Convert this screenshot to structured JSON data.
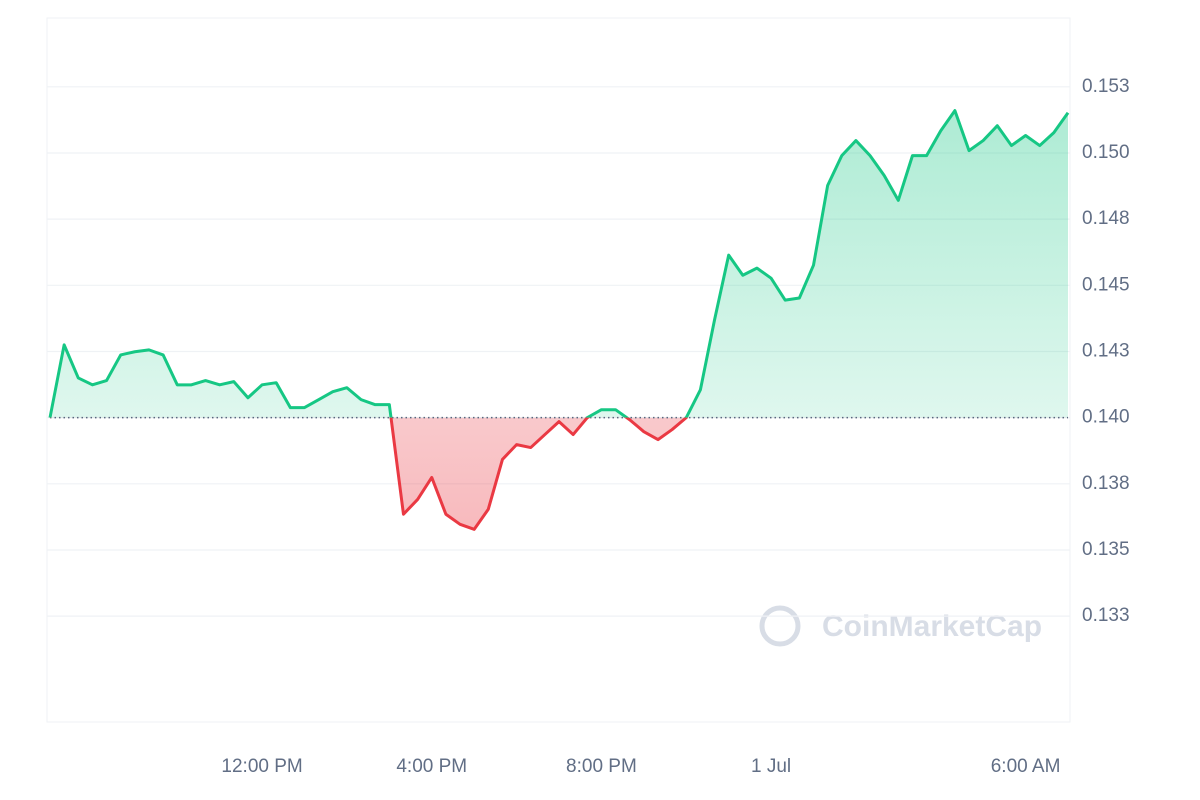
{
  "chart_data": {
    "type": "line",
    "watermark": "CoinMarketCap",
    "x": [
      "07:00",
      "07:20",
      "07:40",
      "08:00",
      "08:20",
      "08:40",
      "09:00",
      "09:20",
      "09:40",
      "10:00",
      "10:20",
      "10:40",
      "11:00",
      "11:20",
      "11:40",
      "12:00",
      "12:20",
      "12:40",
      "13:00",
      "13:20",
      "13:40",
      "14:00",
      "14:20",
      "14:40",
      "15:00",
      "15:20",
      "15:40",
      "16:00",
      "16:20",
      "16:40",
      "17:00",
      "17:20",
      "17:40",
      "18:00",
      "18:20",
      "18:40",
      "19:00",
      "19:20",
      "19:40",
      "20:00",
      "20:20",
      "20:40",
      "21:00",
      "21:20",
      "21:40",
      "22:00",
      "22:20",
      "22:40",
      "23:00",
      "23:20",
      "23:40",
      "00:00",
      "00:20",
      "00:40",
      "01:00",
      "01:20",
      "01:40",
      "02:00",
      "02:20",
      "02:40",
      "03:00",
      "03:20",
      "03:40",
      "04:00",
      "04:20",
      "04:40",
      "05:00",
      "05:20",
      "05:40",
      "06:00",
      "06:20",
      "06:40",
      "07:00"
    ],
    "values": [
      0.14,
      0.14275,
      0.1415,
      0.14124,
      0.1414,
      0.14237,
      0.14249,
      0.14256,
      0.14237,
      0.14124,
      0.14124,
      0.1414,
      0.14124,
      0.14136,
      0.14075,
      0.14124,
      0.14132,
      0.14038,
      0.14038,
      0.14068,
      0.14098,
      0.14113,
      0.14068,
      0.14049,
      0.14049,
      0.13635,
      0.13691,
      0.13774,
      0.13635,
      0.13597,
      0.13578,
      0.13654,
      0.13842,
      0.13898,
      0.13887,
      0.13936,
      0.13985,
      0.13936,
      0.14,
      0.1403,
      0.1403,
      0.13992,
      0.13947,
      0.13917,
      0.13955,
      0.14,
      0.14105,
      0.14369,
      0.14614,
      0.14538,
      0.14565,
      0.14527,
      0.14444,
      0.14452,
      0.14576,
      0.14877,
      0.1499,
      0.15047,
      0.1499,
      0.14915,
      0.14821,
      0.1499,
      0.1499,
      0.15084,
      0.1516,
      0.15009,
      0.15047,
      0.15103,
      0.15028,
      0.15066,
      0.15028,
      0.15077,
      0.15152
    ],
    "baseline": 0.14,
    "up_color": "#16c784",
    "down_color": "#ea3943",
    "ylim": [
      0.1285,
      0.1551
    ],
    "yticks": [
      {
        "value": 0.1325,
        "label": "0.133"
      },
      {
        "value": 0.135,
        "label": "0.135"
      },
      {
        "value": 0.1375,
        "label": "0.138"
      },
      {
        "value": 0.14,
        "label": "0.140"
      },
      {
        "value": 0.1425,
        "label": "0.143"
      },
      {
        "value": 0.145,
        "label": "0.145"
      },
      {
        "value": 0.1475,
        "label": "0.148"
      },
      {
        "value": 0.15,
        "label": "0.150"
      },
      {
        "value": 0.1525,
        "label": "0.153"
      }
    ],
    "xticks": [
      {
        "value": "12:00",
        "label": "12:00 PM"
      },
      {
        "value": "16:00",
        "label": "4:00 PM"
      },
      {
        "value": "20:00",
        "label": "8:00 PM"
      },
      {
        "value": "00:00",
        "label": "1 Jul"
      },
      {
        "value": "06:00",
        "label": "6:00 AM"
      }
    ],
    "grid": true
  }
}
